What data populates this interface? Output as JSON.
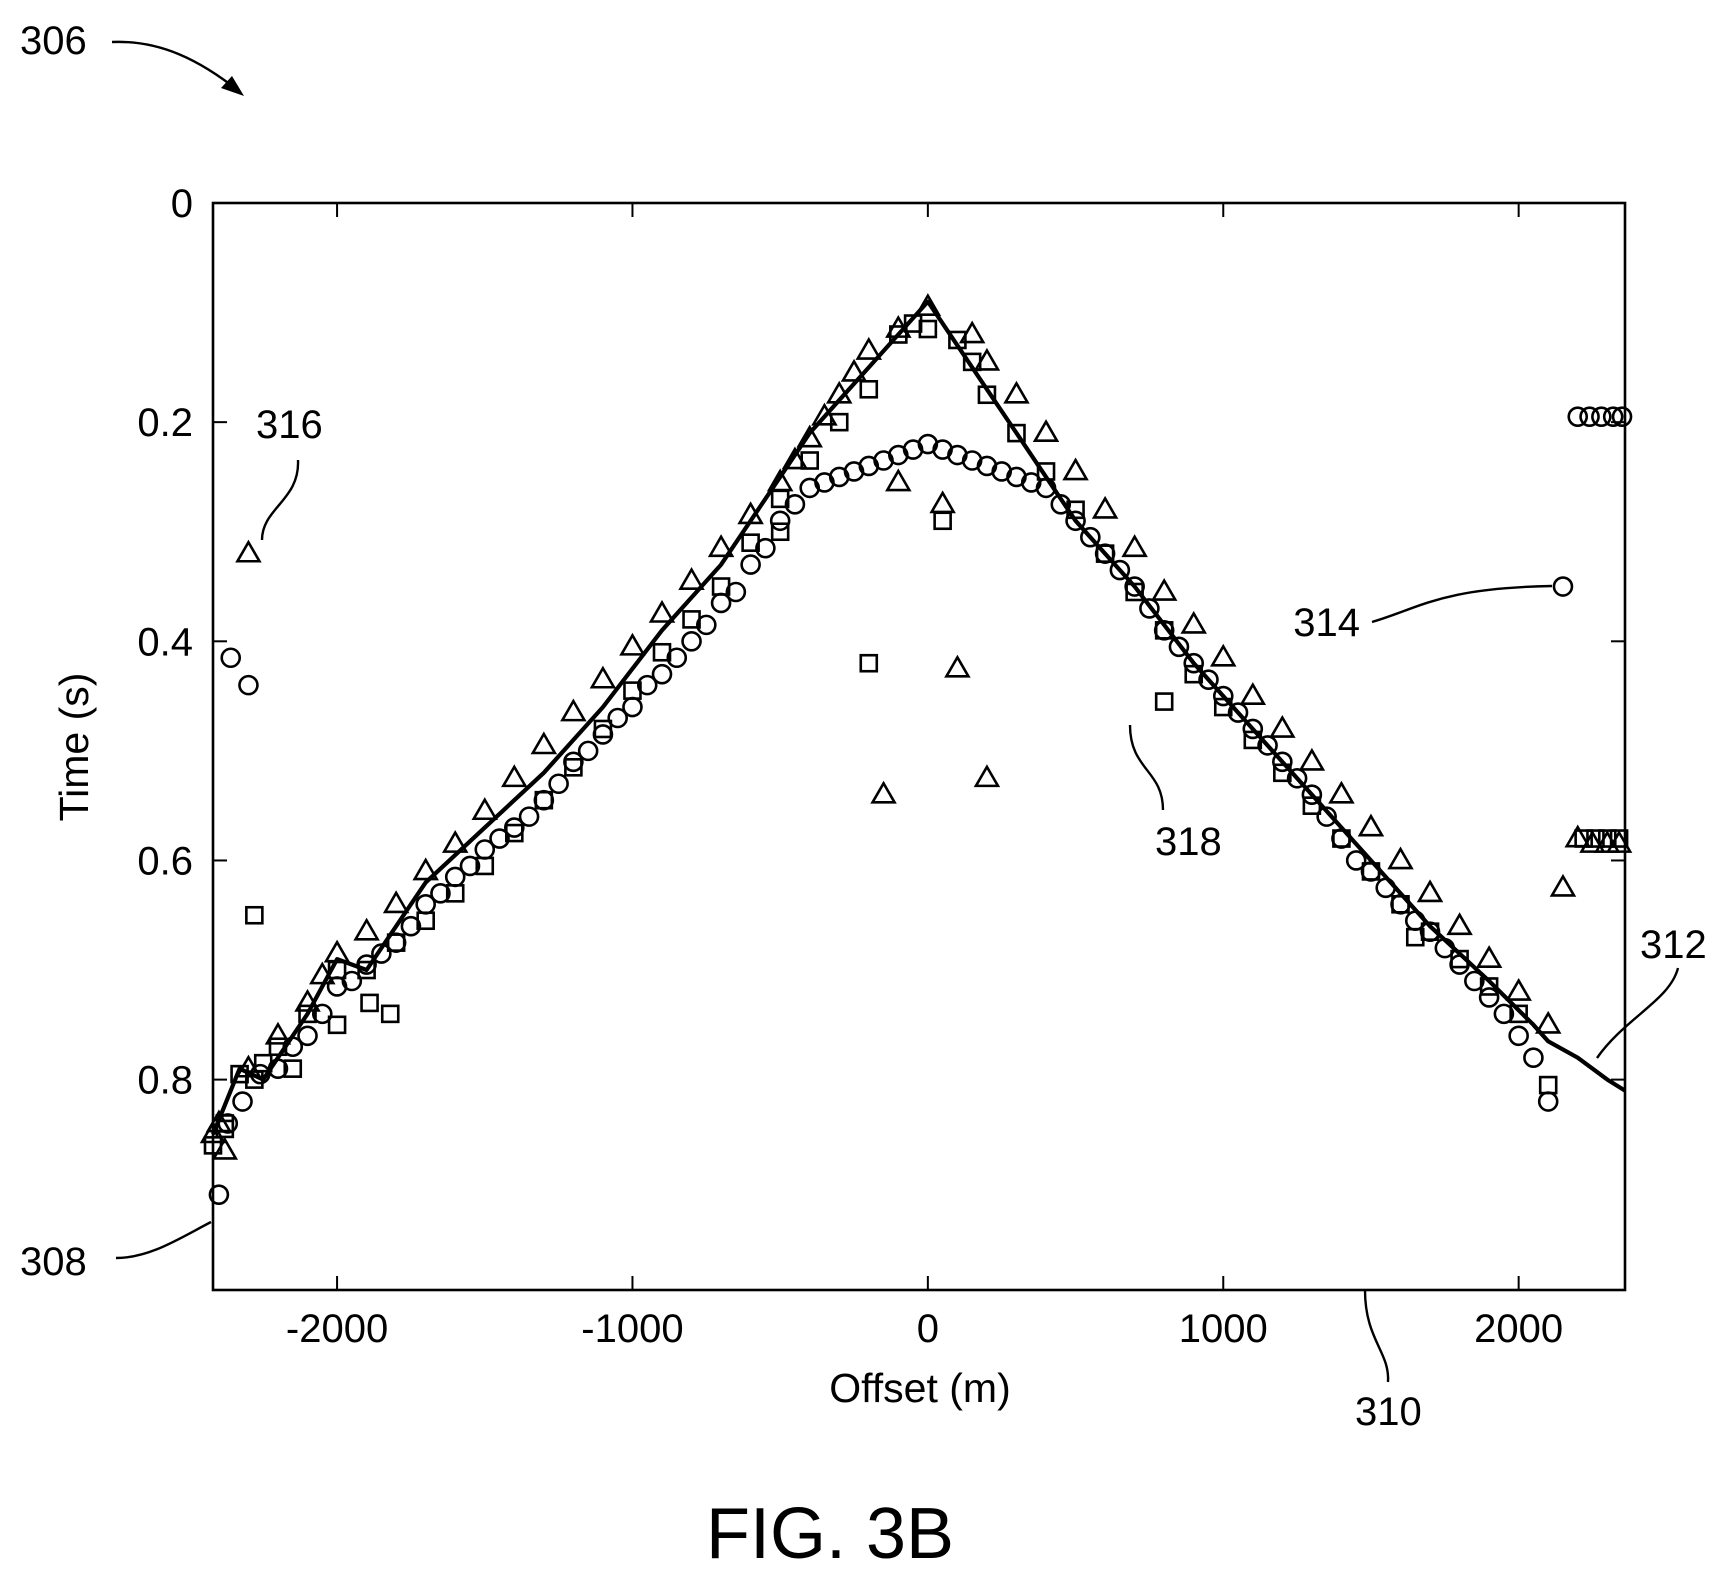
{
  "figure_label": "FIG. 3B",
  "reference_labels": {
    "figure": "306",
    "y_axis": "308",
    "x_axis": "310",
    "picked_curve": "312",
    "circle_series": "314",
    "triangle_series": "316",
    "square_series": "318"
  },
  "colors": {
    "ink": "#000000",
    "background": "#ffffff"
  },
  "chart_data": {
    "type": "scatter",
    "title": "",
    "xlabel": "Offset (m)",
    "ylabel": "Time (s)",
    "xlim": [
      -2420,
      2360
    ],
    "ylim": [
      1.0,
      0.0
    ],
    "y_inverted": true,
    "grid": false,
    "x_ticks": [
      -2000,
      -1000,
      0,
      1000,
      2000
    ],
    "x_tick_labels": [
      "-2000",
      "-1000",
      "0",
      "1000",
      "2000"
    ],
    "y_ticks": [
      0,
      0.2,
      0.4,
      0.6,
      0.8
    ],
    "y_tick_labels": [
      "0",
      "0.2",
      "0.4",
      "0.6",
      "0.8"
    ],
    "series": [
      {
        "marker": "line",
        "x": [
          -2420,
          -2330,
          -2250,
          -2100,
          -2000,
          -1900,
          -1700,
          -1500,
          -1300,
          -1100,
          -900,
          -700,
          -500,
          -400,
          -300,
          -200,
          -100,
          0,
          100,
          200,
          300,
          400,
          500,
          700,
          900,
          1100,
          1300,
          1500,
          1700,
          1900,
          2050,
          2100,
          2200,
          2300,
          2360
        ],
        "y": [
          0.85,
          0.79,
          0.8,
          0.74,
          0.69,
          0.7,
          0.62,
          0.57,
          0.52,
          0.46,
          0.39,
          0.33,
          0.25,
          0.21,
          0.18,
          0.15,
          0.12,
          0.09,
          0.13,
          0.17,
          0.21,
          0.25,
          0.29,
          0.35,
          0.42,
          0.48,
          0.54,
          0.6,
          0.66,
          0.71,
          0.75,
          0.765,
          0.78,
          0.8,
          0.81
        ]
      },
      {
        "marker": "circle",
        "x": [
          -2400,
          -2370,
          -2320,
          -2260,
          -2200,
          -2150,
          -2100,
          -2050,
          -2000,
          -1950,
          -1900,
          -1850,
          -1800,
          -1750,
          -1700,
          -1650,
          -1600,
          -1550,
          -1500,
          -1450,
          -1400,
          -1350,
          -1300,
          -1250,
          -1200,
          -1150,
          -1100,
          -1050,
          -1000,
          -950,
          -900,
          -850,
          -800,
          -750,
          -700,
          -650,
          -600,
          -550,
          -500,
          -450,
          -400,
          -350,
          -300,
          -250,
          -200,
          -150,
          -100,
          -50,
          0,
          50,
          100,
          150,
          200,
          250,
          300,
          350,
          400,
          450,
          500,
          550,
          600,
          650,
          700,
          750,
          800,
          850,
          900,
          950,
          1000,
          1050,
          1100,
          1150,
          1200,
          1250,
          1300,
          1350,
          1400,
          1450,
          1500,
          1550,
          1600,
          1650,
          1700,
          1750,
          1800,
          1850,
          1900,
          1950,
          2000,
          2050,
          2100,
          -2360,
          -2300,
          2150,
          2200,
          2240,
          2280,
          2320,
          2350
        ],
        "y": [
          0.905,
          0.84,
          0.82,
          0.795,
          0.79,
          0.77,
          0.76,
          0.74,
          0.715,
          0.71,
          0.695,
          0.685,
          0.675,
          0.66,
          0.64,
          0.63,
          0.615,
          0.605,
          0.59,
          0.58,
          0.57,
          0.56,
          0.545,
          0.53,
          0.51,
          0.5,
          0.485,
          0.47,
          0.46,
          0.44,
          0.43,
          0.415,
          0.4,
          0.385,
          0.365,
          0.355,
          0.33,
          0.315,
          0.29,
          0.275,
          0.26,
          0.255,
          0.25,
          0.245,
          0.24,
          0.235,
          0.23,
          0.225,
          0.22,
          0.225,
          0.23,
          0.235,
          0.24,
          0.245,
          0.25,
          0.255,
          0.26,
          0.275,
          0.29,
          0.305,
          0.32,
          0.335,
          0.35,
          0.37,
          0.39,
          0.405,
          0.42,
          0.435,
          0.45,
          0.465,
          0.48,
          0.495,
          0.51,
          0.525,
          0.54,
          0.56,
          0.58,
          0.6,
          0.61,
          0.625,
          0.64,
          0.655,
          0.665,
          0.68,
          0.695,
          0.71,
          0.725,
          0.74,
          0.76,
          0.78,
          0.82,
          0.415,
          0.44,
          0.35,
          0.195,
          0.195,
          0.195,
          0.195,
          0.195
        ]
      },
      {
        "marker": "triangle",
        "x": [
          -2420,
          -2400,
          -2380,
          -2300,
          -2200,
          -2100,
          -2050,
          -2000,
          -1900,
          -1800,
          -1700,
          -1600,
          -1500,
          -1400,
          -1300,
          -1200,
          -1100,
          -1000,
          -900,
          -800,
          -700,
          -600,
          -500,
          -450,
          -400,
          -350,
          -300,
          -250,
          -200,
          -100,
          0,
          150,
          200,
          300,
          400,
          500,
          600,
          700,
          800,
          900,
          1000,
          1100,
          1200,
          1300,
          1400,
          1500,
          1600,
          1700,
          1800,
          1900,
          2000,
          2100,
          -2300,
          -100,
          50,
          100,
          -150,
          200,
          2150,
          2200,
          2250,
          2300,
          2340
        ],
        "y": [
          0.85,
          0.84,
          0.865,
          0.79,
          0.76,
          0.73,
          0.705,
          0.685,
          0.665,
          0.64,
          0.61,
          0.585,
          0.555,
          0.525,
          0.495,
          0.465,
          0.435,
          0.405,
          0.375,
          0.345,
          0.315,
          0.285,
          0.255,
          0.235,
          0.215,
          0.195,
          0.175,
          0.155,
          0.135,
          0.115,
          0.095,
          0.12,
          0.145,
          0.175,
          0.21,
          0.245,
          0.28,
          0.315,
          0.355,
          0.385,
          0.415,
          0.45,
          0.48,
          0.51,
          0.54,
          0.57,
          0.6,
          0.63,
          0.66,
          0.69,
          0.72,
          0.75,
          0.32,
          0.255,
          0.275,
          0.425,
          0.54,
          0.525,
          0.625,
          0.58,
          0.585,
          0.585,
          0.585
        ]
      },
      {
        "marker": "square",
        "x": [
          -2420,
          -2380,
          -2330,
          -2280,
          -2250,
          -2200,
          -2100,
          -2000,
          -1900,
          -1800,
          -1700,
          -1600,
          -1500,
          -1400,
          -1300,
          -1200,
          -1100,
          -1000,
          -900,
          -800,
          -700,
          -600,
          -500,
          -400,
          -300,
          -200,
          -100,
          -50,
          0,
          100,
          150,
          200,
          300,
          400,
          500,
          600,
          700,
          800,
          900,
          1000,
          1100,
          1200,
          1300,
          1400,
          1500,
          1600,
          1700,
          1800,
          1900,
          2000,
          2100,
          -2280,
          -1890,
          -1820,
          -500,
          -200,
          50,
          800,
          -2380,
          -2150,
          -2000,
          1650,
          2220,
          2260,
          2300,
          2340
        ],
        "y": [
          0.86,
          0.84,
          0.795,
          0.8,
          0.785,
          0.77,
          0.74,
          0.7,
          0.7,
          0.675,
          0.655,
          0.63,
          0.605,
          0.575,
          0.545,
          0.515,
          0.48,
          0.445,
          0.41,
          0.38,
          0.35,
          0.31,
          0.27,
          0.235,
          0.2,
          0.17,
          0.12,
          0.11,
          0.115,
          0.125,
          0.145,
          0.175,
          0.21,
          0.245,
          0.28,
          0.32,
          0.355,
          0.39,
          0.43,
          0.46,
          0.49,
          0.52,
          0.55,
          0.58,
          0.61,
          0.64,
          0.665,
          0.69,
          0.715,
          0.74,
          0.805,
          0.65,
          0.73,
          0.74,
          0.3,
          0.42,
          0.29,
          0.455,
          0.845,
          0.79,
          0.75,
          0.67,
          0.58,
          0.58,
          0.58,
          0.58
        ]
      }
    ]
  }
}
